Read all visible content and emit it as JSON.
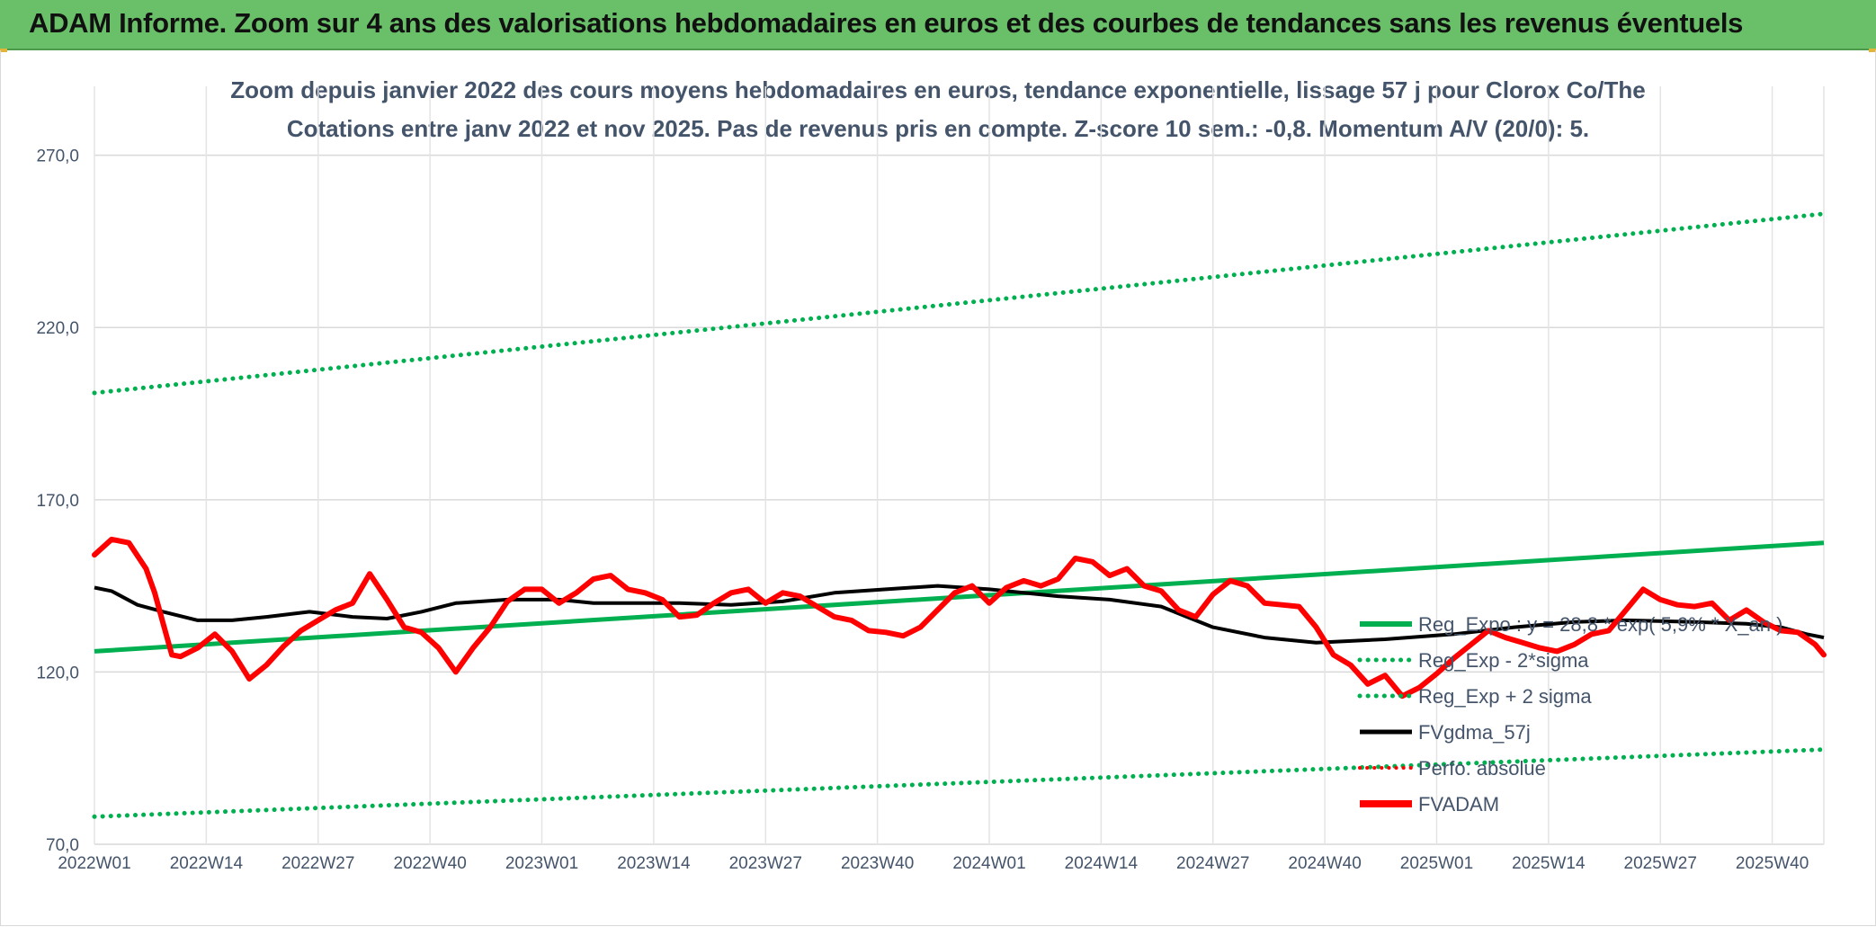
{
  "header": {
    "title": "ADAM Informe. Zoom sur 4 ans des valorisations hebdomadaires en euros et des courbes de tendances sans les revenus éventuels"
  },
  "colors": {
    "banner": "#6abf69",
    "trend": "#00b050",
    "price": "#ff0000",
    "smooth": "#000000",
    "text": "#44546a",
    "grid": "#d9d9d9"
  },
  "chart_data": {
    "type": "line",
    "title_line1": "Zoom depuis janvier 2022 des cours moyens hebdomadaires en euros, tendance exponentielle, lissage 57 j pour Clorox Co/The",
    "title_line2": "Cotations entre janv 2022 et nov 2025. Pas de revenus pris en compte. Z-score 10 sem.: -0,8. Momentum A/V (20/0): 5.",
    "ylim": [
      70,
      290
    ],
    "y_ticks": [
      70,
      120,
      170,
      220,
      270
    ],
    "y_tick_labels": [
      "70,0",
      "120,0",
      "170,0",
      "220,0",
      "270,0"
    ],
    "n_weeks": 202,
    "x_tick_index": [
      0,
      13,
      26,
      39,
      52,
      65,
      78,
      91,
      104,
      117,
      130,
      143,
      156,
      169,
      182,
      195
    ],
    "x_tick_labels": [
      "2022W01",
      "2022W14",
      "2022W27",
      "2022W40",
      "2023W01",
      "2023W14",
      "2023W27",
      "2023W40",
      "2024W01",
      "2024W14",
      "2024W27",
      "2024W40",
      "2025W01",
      "2025W14",
      "2025W27",
      "2025W40"
    ],
    "legend": [
      {
        "label": "Reg_Expo : y = 28,8 * exp( 5,9% *  X_an )",
        "style": "solid-green"
      },
      {
        "label": "Reg_Exp - 2*sigma",
        "style": "dotted-green"
      },
      {
        "label": "Reg_Exp + 2 sigma",
        "style": "dotted-green"
      },
      {
        "label": "FVgdma_57j",
        "style": "solid-black"
      },
      {
        "label": "Perfo. absolue",
        "style": "dotted-red"
      },
      {
        "label": "FVADAM",
        "style": "solid-red-thick"
      }
    ],
    "series": [
      {
        "name": "Reg_Expo",
        "points": [
          [
            0,
            126.0
          ],
          [
            201,
            157.5
          ]
        ]
      },
      {
        "name": "Reg_Exp - 2*sigma",
        "points": [
          [
            0,
            78.0
          ],
          [
            201,
            97.5
          ]
        ]
      },
      {
        "name": "Reg_Exp + 2 sigma",
        "points": [
          [
            0,
            201.0
          ],
          [
            201,
            253.0
          ]
        ]
      },
      {
        "name": "FVgdma_57j",
        "points": [
          [
            0,
            144.5
          ],
          [
            2,
            143.5
          ],
          [
            5,
            139.5
          ],
          [
            8,
            137.5
          ],
          [
            12,
            135.0
          ],
          [
            16,
            135.0
          ],
          [
            20,
            136.0
          ],
          [
            25,
            137.5
          ],
          [
            30,
            136.0
          ],
          [
            34,
            135.5
          ],
          [
            38,
            137.5
          ],
          [
            42,
            140.0
          ],
          [
            48,
            141.0
          ],
          [
            54,
            141.0
          ],
          [
            58,
            140.0
          ],
          [
            62,
            140.0
          ],
          [
            68,
            140.0
          ],
          [
            74,
            139.5
          ],
          [
            80,
            140.5
          ],
          [
            86,
            143.0
          ],
          [
            92,
            144.0
          ],
          [
            98,
            145.0
          ],
          [
            104,
            144.0
          ],
          [
            112,
            142.0
          ],
          [
            118,
            141.0
          ],
          [
            124,
            139.0
          ],
          [
            130,
            133.0
          ],
          [
            136,
            130.0
          ],
          [
            142,
            128.5
          ],
          [
            150,
            129.5
          ],
          [
            158,
            131.0
          ],
          [
            165,
            133.0
          ],
          [
            172,
            134.5
          ],
          [
            178,
            135.0
          ],
          [
            186,
            134.5
          ],
          [
            192,
            134.0
          ],
          [
            196,
            133.0
          ],
          [
            199,
            131.0
          ],
          [
            201,
            130.0
          ]
        ]
      },
      {
        "name": "FVADAM",
        "points": [
          [
            0,
            154.0
          ],
          [
            2,
            158.5
          ],
          [
            4,
            157.5
          ],
          [
            6,
            150.0
          ],
          [
            7,
            143.0
          ],
          [
            8,
            134.0
          ],
          [
            9,
            125.0
          ],
          [
            10,
            124.5
          ],
          [
            12,
            127.0
          ],
          [
            14,
            131.0
          ],
          [
            16,
            126.0
          ],
          [
            18,
            118.0
          ],
          [
            20,
            122.0
          ],
          [
            22,
            127.5
          ],
          [
            24,
            132.0
          ],
          [
            26,
            135.0
          ],
          [
            28,
            138.0
          ],
          [
            30,
            140.0
          ],
          [
            32,
            148.5
          ],
          [
            34,
            141.0
          ],
          [
            36,
            133.0
          ],
          [
            38,
            131.5
          ],
          [
            40,
            127.0
          ],
          [
            42,
            120.0
          ],
          [
            44,
            127.0
          ],
          [
            46,
            133.0
          ],
          [
            48,
            140.5
          ],
          [
            50,
            144.0
          ],
          [
            52,
            144.0
          ],
          [
            54,
            140.0
          ],
          [
            56,
            143.0
          ],
          [
            58,
            147.0
          ],
          [
            60,
            148.0
          ],
          [
            62,
            144.0
          ],
          [
            64,
            143.0
          ],
          [
            66,
            141.0
          ],
          [
            68,
            136.0
          ],
          [
            70,
            136.5
          ],
          [
            72,
            140.0
          ],
          [
            74,
            143.0
          ],
          [
            76,
            144.0
          ],
          [
            78,
            140.0
          ],
          [
            80,
            143.0
          ],
          [
            82,
            142.0
          ],
          [
            84,
            139.0
          ],
          [
            86,
            136.0
          ],
          [
            88,
            135.0
          ],
          [
            90,
            132.0
          ],
          [
            92,
            131.5
          ],
          [
            94,
            130.5
          ],
          [
            96,
            133.0
          ],
          [
            98,
            138.0
          ],
          [
            100,
            143.0
          ],
          [
            102,
            145.0
          ],
          [
            104,
            140.0
          ],
          [
            106,
            144.5
          ],
          [
            108,
            146.5
          ],
          [
            110,
            145.0
          ],
          [
            112,
            147.0
          ],
          [
            114,
            153.0
          ],
          [
            116,
            152.0
          ],
          [
            118,
            148.0
          ],
          [
            120,
            150.0
          ],
          [
            122,
            145.0
          ],
          [
            124,
            143.5
          ],
          [
            126,
            138.0
          ],
          [
            128,
            136.0
          ],
          [
            130,
            142.5
          ],
          [
            132,
            146.5
          ],
          [
            134,
            145.0
          ],
          [
            136,
            140.0
          ],
          [
            138,
            139.5
          ],
          [
            140,
            139.0
          ],
          [
            142,
            133.0
          ],
          [
            144,
            125.0
          ],
          [
            146,
            122.0
          ],
          [
            148,
            116.5
          ],
          [
            150,
            119.0
          ],
          [
            152,
            113.0
          ],
          [
            154,
            115.5
          ],
          [
            156,
            119.5
          ],
          [
            158,
            124.0
          ],
          [
            160,
            128.0
          ],
          [
            162,
            132.0
          ],
          [
            164,
            130.0
          ],
          [
            166,
            128.5
          ],
          [
            168,
            127.0
          ],
          [
            170,
            126.0
          ],
          [
            172,
            128.0
          ],
          [
            174,
            131.0
          ],
          [
            176,
            132.0
          ],
          [
            178,
            138.0
          ],
          [
            180,
            144.0
          ],
          [
            182,
            141.0
          ],
          [
            184,
            139.5
          ],
          [
            186,
            139.0
          ],
          [
            188,
            140.0
          ],
          [
            190,
            135.0
          ],
          [
            192,
            138.0
          ],
          [
            194,
            134.5
          ],
          [
            196,
            132.0
          ],
          [
            198,
            131.5
          ],
          [
            200,
            128.0
          ],
          [
            201,
            125.0
          ]
        ]
      }
    ]
  }
}
